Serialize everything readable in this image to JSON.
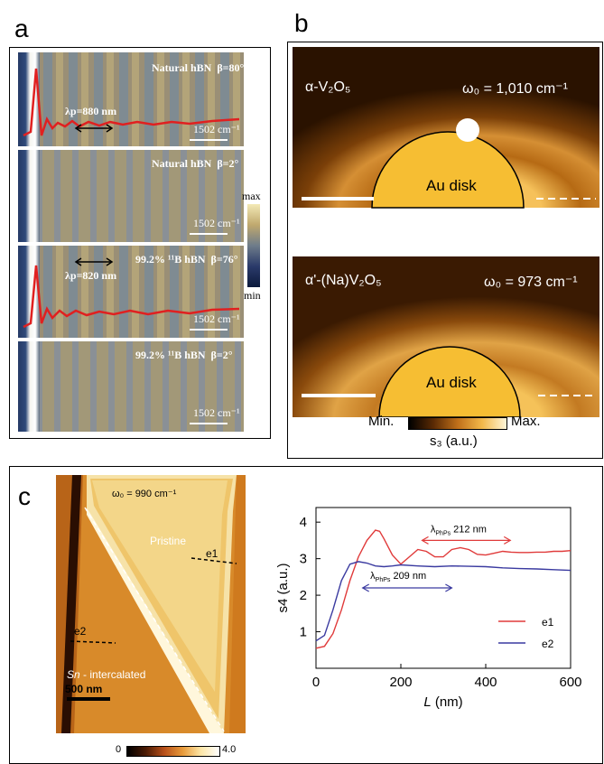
{
  "panels": {
    "a": "a",
    "b": "b",
    "c": "c"
  },
  "panel_a": {
    "strips": [
      {
        "title": "Natural hBN",
        "beta": "β=80°",
        "wavelength": "λp=880 nm",
        "scale": "1502 cm⁻¹"
      },
      {
        "title": "Natural hBN",
        "beta": "β=2°",
        "wavelength": "",
        "scale": "1502 cm⁻¹"
      },
      {
        "title": "99.2% ¹¹B hBN",
        "beta": "β=76°",
        "wavelength": "λp=820 nm",
        "scale": "1502 cm⁻¹"
      },
      {
        "title": "99.2% ¹¹B hBN",
        "beta": "β=2°",
        "wavelength": "",
        "scale": "1502 cm⁻¹"
      }
    ],
    "colorbar": {
      "max": "max",
      "min": "min"
    }
  },
  "panel_b": {
    "top": {
      "material": "α-V₂O₅",
      "omega": "ω₀ = 1,010 cm⁻¹",
      "disk": "Au disk"
    },
    "bottom": {
      "material": "α'-(Na)V₂O₅",
      "omega": "ω₀ = 973 cm⁻¹",
      "disk": "Au disk"
    },
    "colorbar": {
      "min": "Min.",
      "max": "Max.",
      "label": "s₃ (a.u.)"
    }
  },
  "panel_c": {
    "image": {
      "omega": "ω₀ = 990 cm⁻¹",
      "pristine": "Pristine",
      "e1": "e1",
      "e2": "e2",
      "intercalated_prefix": "Sn",
      "intercalated_suffix": " - intercalated",
      "scale": "500 nm"
    },
    "colorbar": {
      "min": "0",
      "max": "4.0"
    },
    "annotations": {
      "red": "λPhPs 212 nm",
      "blue": "λPhPs 209 nm"
    }
  },
  "chart_data": {
    "type": "line",
    "xlabel": "L (nm)",
    "ylabel": "s4 (a.u.)",
    "xlim": [
      0,
      600
    ],
    "ylim": [
      0,
      4.4
    ],
    "xticks": [
      0,
      200,
      400,
      600
    ],
    "yticks": [
      1,
      2,
      3,
      4
    ],
    "grid": false,
    "legend_position": "bottom-right",
    "series": [
      {
        "name": "e1",
        "color": "#e03a3a",
        "x": [
          0,
          20,
          40,
          60,
          80,
          100,
          120,
          140,
          150,
          160,
          180,
          200,
          220,
          240,
          260,
          280,
          300,
          320,
          340,
          360,
          380,
          400,
          420,
          440,
          460,
          480,
          500,
          520,
          540,
          560,
          580,
          600
        ],
        "y": [
          0.55,
          0.6,
          0.95,
          1.6,
          2.4,
          3.05,
          3.5,
          3.78,
          3.75,
          3.55,
          3.1,
          2.85,
          3.05,
          3.25,
          3.2,
          3.05,
          3.05,
          3.25,
          3.3,
          3.25,
          3.12,
          3.1,
          3.15,
          3.2,
          3.18,
          3.17,
          3.17,
          3.18,
          3.18,
          3.2,
          3.2,
          3.22
        ]
      },
      {
        "name": "e2",
        "color": "#3a3aa0",
        "x": [
          0,
          20,
          40,
          60,
          80,
          100,
          120,
          140,
          160,
          180,
          200,
          240,
          280,
          320,
          360,
          400,
          440,
          480,
          520,
          560,
          600
        ],
        "y": [
          0.75,
          0.9,
          1.6,
          2.4,
          2.85,
          2.92,
          2.88,
          2.8,
          2.78,
          2.8,
          2.83,
          2.8,
          2.78,
          2.8,
          2.79,
          2.78,
          2.75,
          2.73,
          2.72,
          2.7,
          2.68
        ]
      }
    ]
  }
}
